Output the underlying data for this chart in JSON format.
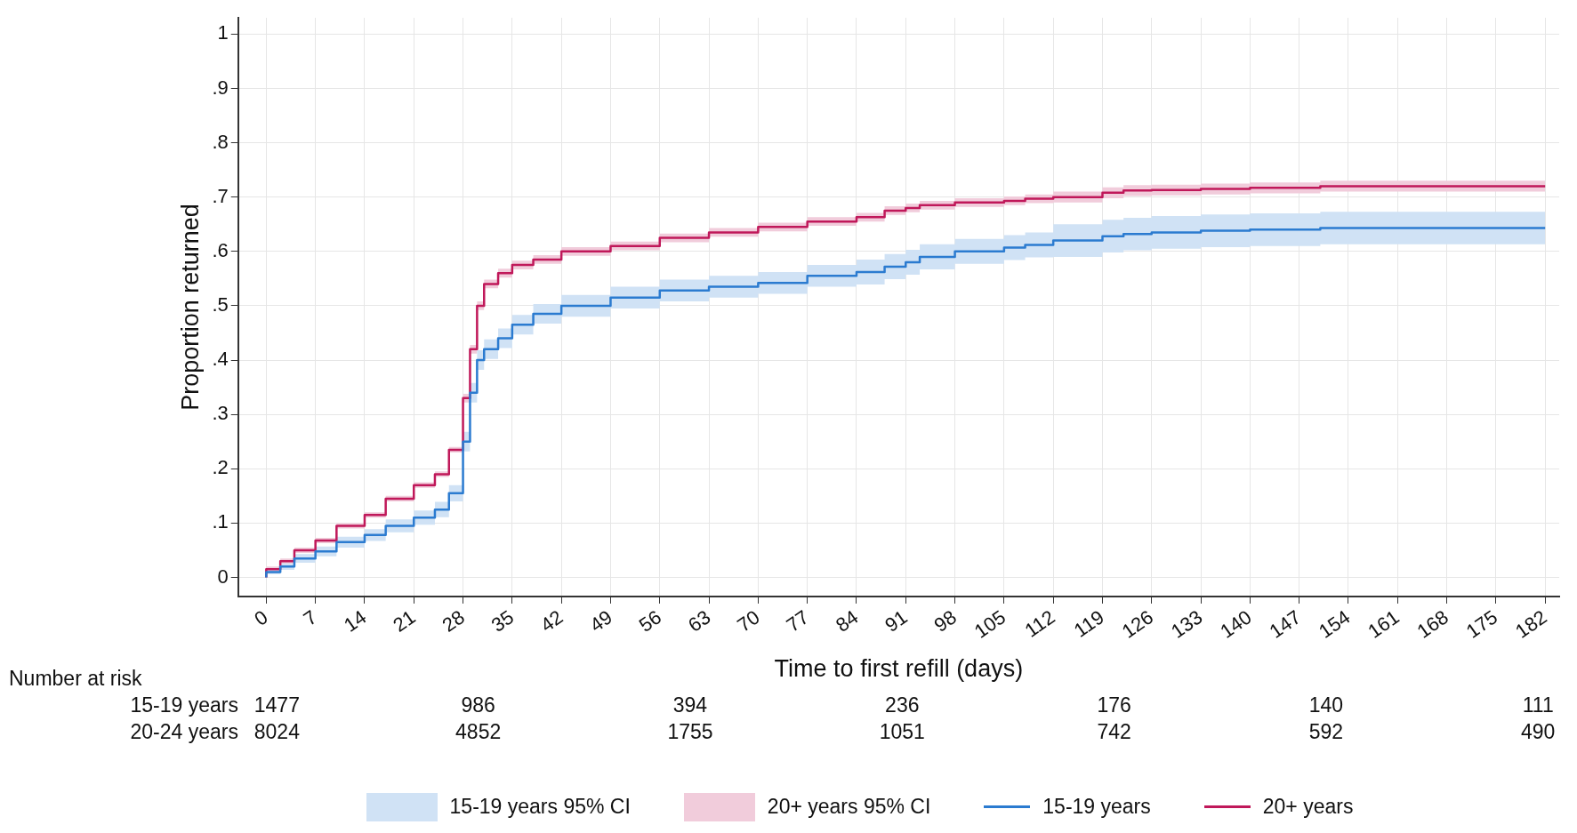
{
  "chart_data": {
    "type": "step",
    "xlabel": "Time to first refill (days)",
    "ylabel": "Proportion returned",
    "x": [
      0,
      2,
      4,
      7,
      10,
      14,
      17,
      21,
      24,
      26,
      28,
      29,
      30,
      31,
      33,
      35,
      38,
      42,
      49,
      56,
      63,
      70,
      77,
      84,
      88,
      91,
      93,
      98,
      105,
      108,
      112,
      119,
      122,
      126,
      133,
      140,
      150,
      160,
      170,
      182
    ],
    "series": [
      {
        "name": "15-19 years",
        "color": "#2b7bd0",
        "values": [
          0,
          0.01,
          0.02,
          0.035,
          0.048,
          0.065,
          0.078,
          0.095,
          0.11,
          0.125,
          0.155,
          0.25,
          0.34,
          0.4,
          0.42,
          0.44,
          0.465,
          0.485,
          0.5,
          0.515,
          0.528,
          0.535,
          0.542,
          0.555,
          0.562,
          0.572,
          0.58,
          0.59,
          0.6,
          0.607,
          0.612,
          0.62,
          0.628,
          0.632,
          0.635,
          0.638,
          0.64,
          0.643,
          0.643,
          0.643
        ],
        "lower": [
          0,
          0.006,
          0.014,
          0.027,
          0.039,
          0.055,
          0.067,
          0.083,
          0.097,
          0.111,
          0.14,
          0.232,
          0.322,
          0.382,
          0.402,
          0.422,
          0.447,
          0.467,
          0.48,
          0.495,
          0.508,
          0.515,
          0.522,
          0.535,
          0.539,
          0.549,
          0.557,
          0.567,
          0.577,
          0.584,
          0.589,
          0.59,
          0.598,
          0.602,
          0.605,
          0.608,
          0.61,
          0.613,
          0.613,
          0.613
        ],
        "upper": [
          0,
          0.014,
          0.026,
          0.043,
          0.057,
          0.075,
          0.089,
          0.107,
          0.123,
          0.139,
          0.17,
          0.268,
          0.358,
          0.418,
          0.438,
          0.458,
          0.483,
          0.503,
          0.52,
          0.535,
          0.548,
          0.555,
          0.562,
          0.575,
          0.585,
          0.595,
          0.603,
          0.613,
          0.623,
          0.63,
          0.635,
          0.65,
          0.658,
          0.662,
          0.665,
          0.668,
          0.67,
          0.673,
          0.673,
          0.673
        ]
      },
      {
        "name": "20+ years",
        "color": "#c0185a",
        "values": [
          0,
          0.015,
          0.03,
          0.05,
          0.068,
          0.095,
          0.115,
          0.145,
          0.17,
          0.19,
          0.235,
          0.33,
          0.42,
          0.5,
          0.54,
          0.56,
          0.575,
          0.585,
          0.6,
          0.61,
          0.625,
          0.635,
          0.645,
          0.655,
          0.663,
          0.675,
          0.68,
          0.685,
          0.69,
          0.693,
          0.697,
          0.7,
          0.708,
          0.712,
          0.713,
          0.715,
          0.717,
          0.72,
          0.72,
          0.72
        ],
        "lower": [
          0,
          0.01,
          0.025,
          0.045,
          0.063,
          0.09,
          0.11,
          0.14,
          0.165,
          0.185,
          0.23,
          0.322,
          0.412,
          0.492,
          0.532,
          0.552,
          0.567,
          0.577,
          0.592,
          0.602,
          0.617,
          0.627,
          0.637,
          0.647,
          0.655,
          0.667,
          0.672,
          0.677,
          0.682,
          0.685,
          0.689,
          0.69,
          0.698,
          0.702,
          0.703,
          0.705,
          0.707,
          0.71,
          0.71,
          0.71
        ],
        "upper": [
          0,
          0.02,
          0.035,
          0.055,
          0.073,
          0.1,
          0.12,
          0.15,
          0.175,
          0.195,
          0.24,
          0.338,
          0.428,
          0.508,
          0.548,
          0.568,
          0.583,
          0.593,
          0.608,
          0.618,
          0.633,
          0.643,
          0.653,
          0.663,
          0.671,
          0.683,
          0.688,
          0.693,
          0.698,
          0.701,
          0.705,
          0.71,
          0.718,
          0.722,
          0.723,
          0.725,
          0.727,
          0.73,
          0.73,
          0.73
        ]
      }
    ],
    "xlim": [
      -4,
      184
    ],
    "xticks": [
      0,
      7,
      14,
      21,
      28,
      35,
      42,
      49,
      56,
      63,
      70,
      77,
      84,
      91,
      98,
      105,
      112,
      119,
      126,
      133,
      140,
      147,
      154,
      161,
      168,
      175,
      182
    ],
    "ylim": [
      -0.035,
      1.03
    ],
    "yticks": [
      0,
      {
        "value": 0.1,
        "label": ".1"
      },
      {
        "value": 0.2,
        "label": ".2"
      },
      {
        "value": 0.3,
        "label": ".3"
      },
      {
        "value": 0.4,
        "label": ".4"
      },
      {
        "value": 0.5,
        "label": ".5"
      },
      {
        "value": 0.6,
        "label": ".6"
      },
      {
        "value": 0.7,
        "label": ".7"
      },
      {
        "value": 0.8,
        "label": ".8"
      },
      {
        "value": 0.9,
        "label": ".9"
      },
      1
    ],
    "grid": true,
    "legend": "bottom",
    "marker": "none",
    "line_style": "solid",
    "annotations": [
      "15-19 years 95% CI",
      "20+ years 95% CI",
      "Number at risk",
      "15-19 years",
      "1477",
      "986",
      "394",
      "236",
      "176",
      "140",
      "111",
      "20-24 years",
      "8024",
      "4852",
      "1755",
      "1051",
      "742",
      "592",
      "490"
    ]
  }
}
